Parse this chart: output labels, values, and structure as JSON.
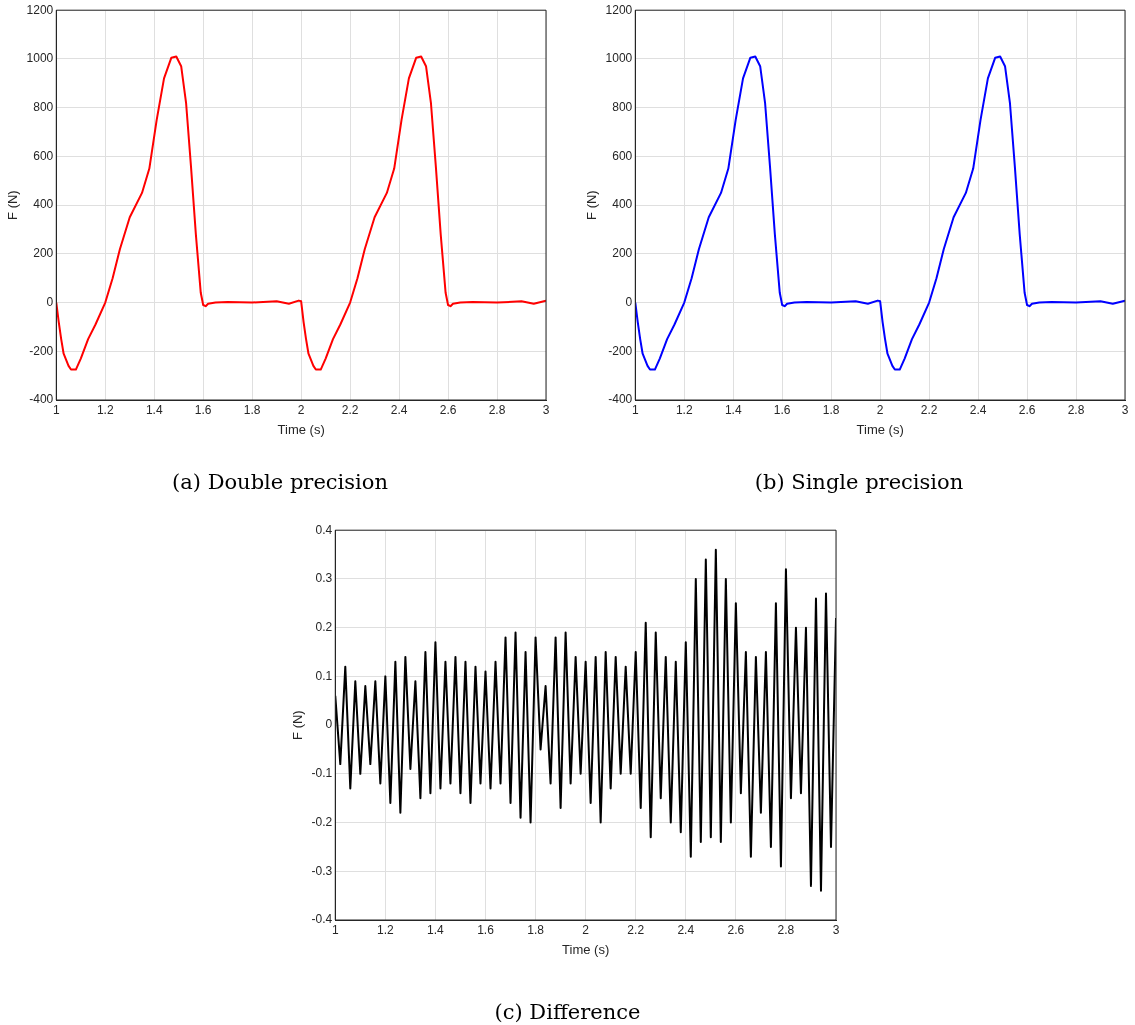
{
  "chart_data": [
    {
      "type": "line",
      "title": "(a) Double precision",
      "xlabel": "Time (s)",
      "ylabel": "F (N)",
      "xlim": [
        1,
        3
      ],
      "ylim": [
        -400,
        1200
      ],
      "xticks": [
        1,
        1.2,
        1.4,
        1.6,
        1.8,
        2,
        2.2,
        2.4,
        2.6,
        2.8,
        3
      ],
      "yticks": [
        -400,
        -200,
        0,
        200,
        400,
        600,
        800,
        1000,
        1200
      ],
      "grid": true,
      "legend": false,
      "marker": "none",
      "line_style": "solid",
      "x": [
        1,
        1.01,
        1.02,
        1.03,
        1.05,
        1.06,
        1.08,
        1.1,
        1.13,
        1.16,
        1.2,
        1.23,
        1.26,
        1.3,
        1.35,
        1.38,
        1.41,
        1.44,
        1.47,
        1.49,
        1.51,
        1.53,
        1.55,
        1.57,
        1.59,
        1.6,
        1.61,
        1.62,
        1.65,
        1.7,
        1.8,
        1.9,
        1.95,
        1.99,
        2,
        2.01,
        2.02,
        2.03,
        2.05,
        2.06,
        2.08,
        2.1,
        2.13,
        2.16,
        2.2,
        2.23,
        2.26,
        2.3,
        2.35,
        2.38,
        2.41,
        2.44,
        2.47,
        2.49,
        2.51,
        2.53,
        2.55,
        2.57,
        2.59,
        2.6,
        2.61,
        2.62,
        2.65,
        2.7,
        2.8,
        2.9,
        2.95,
        3
      ],
      "series": [
        {
          "color": "#ff0000",
          "values": [
            0,
            -80,
            -150,
            -210,
            -260,
            -275,
            -275,
            -230,
            -150,
            -90,
            0,
            100,
            220,
            350,
            450,
            550,
            750,
            920,
            1005,
            1010,
            970,
            820,
            560,
            280,
            40,
            -10,
            -15,
            -5,
            0,
            2,
            0,
            5,
            -5,
            8,
            5,
            -80,
            -150,
            -210,
            -260,
            -275,
            -275,
            -230,
            -150,
            -90,
            0,
            100,
            220,
            350,
            450,
            550,
            750,
            920,
            1005,
            1010,
            970,
            820,
            560,
            280,
            40,
            -10,
            -15,
            -5,
            0,
            2,
            0,
            5,
            -5,
            8
          ]
        }
      ]
    },
    {
      "type": "line",
      "title": "(b) Single precision",
      "xlabel": "Time (s)",
      "ylabel": "F (N)",
      "xlim": [
        1,
        3
      ],
      "ylim": [
        -400,
        1200
      ],
      "xticks": [
        1,
        1.2,
        1.4,
        1.6,
        1.8,
        2,
        2.2,
        2.4,
        2.6,
        2.8,
        3
      ],
      "yticks": [
        -400,
        -200,
        0,
        200,
        400,
        600,
        800,
        1000,
        1200
      ],
      "grid": true,
      "legend": false,
      "marker": "none",
      "line_style": "solid",
      "x": [
        1,
        1.01,
        1.02,
        1.03,
        1.05,
        1.06,
        1.08,
        1.1,
        1.13,
        1.16,
        1.2,
        1.23,
        1.26,
        1.3,
        1.35,
        1.38,
        1.41,
        1.44,
        1.47,
        1.49,
        1.51,
        1.53,
        1.55,
        1.57,
        1.59,
        1.6,
        1.61,
        1.62,
        1.65,
        1.7,
        1.8,
        1.9,
        1.95,
        1.99,
        2,
        2.01,
        2.02,
        2.03,
        2.05,
        2.06,
        2.08,
        2.1,
        2.13,
        2.16,
        2.2,
        2.23,
        2.26,
        2.3,
        2.35,
        2.38,
        2.41,
        2.44,
        2.47,
        2.49,
        2.51,
        2.53,
        2.55,
        2.57,
        2.59,
        2.6,
        2.61,
        2.62,
        2.65,
        2.7,
        2.8,
        2.9,
        2.95,
        3
      ],
      "series": [
        {
          "color": "#0000ff",
          "values": [
            0,
            -80,
            -150,
            -210,
            -260,
            -275,
            -275,
            -230,
            -150,
            -90,
            0,
            100,
            220,
            350,
            450,
            550,
            750,
            920,
            1005,
            1010,
            970,
            820,
            560,
            280,
            40,
            -10,
            -15,
            -5,
            0,
            2,
            0,
            5,
            -5,
            8,
            5,
            -80,
            -150,
            -210,
            -260,
            -275,
            -275,
            -230,
            -150,
            -90,
            0,
            100,
            220,
            350,
            450,
            550,
            750,
            920,
            1005,
            1010,
            970,
            820,
            560,
            280,
            40,
            -10,
            -15,
            -5,
            0,
            2,
            0,
            5,
            -5,
            8
          ]
        }
      ]
    },
    {
      "type": "line",
      "title": "(c) Difference",
      "xlabel": "Time (s)",
      "ylabel": "F (N)",
      "xlim": [
        1,
        3
      ],
      "ylim": [
        -0.4,
        0.4
      ],
      "xticks": [
        1,
        1.2,
        1.4,
        1.6,
        1.8,
        2,
        2.2,
        2.4,
        2.6,
        2.8,
        3
      ],
      "yticks": [
        -0.4,
        -0.3,
        -0.2,
        -0.1,
        0,
        0.1,
        0.2,
        0.3,
        0.4
      ],
      "grid": true,
      "legend": false,
      "marker": "none",
      "line_style": "solid",
      "x": [
        1,
        1.02,
        1.04,
        1.06,
        1.08,
        1.1,
        1.12,
        1.14,
        1.16,
        1.18,
        1.2,
        1.22,
        1.24,
        1.26,
        1.28,
        1.3,
        1.32,
        1.34,
        1.36,
        1.38,
        1.4,
        1.42,
        1.44,
        1.46,
        1.48,
        1.5,
        1.52,
        1.54,
        1.56,
        1.58,
        1.6,
        1.62,
        1.64,
        1.66,
        1.68,
        1.7,
        1.72,
        1.74,
        1.76,
        1.78,
        1.8,
        1.82,
        1.84,
        1.86,
        1.88,
        1.9,
        1.92,
        1.94,
        1.96,
        1.98,
        2,
        2.02,
        2.04,
        2.06,
        2.08,
        2.1,
        2.12,
        2.14,
        2.16,
        2.18,
        2.2,
        2.22,
        2.24,
        2.26,
        2.28,
        2.3,
        2.32,
        2.34,
        2.36,
        2.38,
        2.4,
        2.42,
        2.44,
        2.46,
        2.48,
        2.5,
        2.52,
        2.54,
        2.56,
        2.58,
        2.6,
        2.62,
        2.64,
        2.66,
        2.68,
        2.7,
        2.72,
        2.74,
        2.76,
        2.78,
        2.8,
        2.82,
        2.84,
        2.86,
        2.88,
        2.9,
        2.92,
        2.94,
        2.96,
        2.98,
        3
      ],
      "series": [
        {
          "color": "#000000",
          "values": [
            0.06,
            -0.08,
            0.12,
            -0.13,
            0.09,
            -0.1,
            0.08,
            -0.08,
            0.09,
            -0.12,
            0.1,
            -0.16,
            0.13,
            -0.18,
            0.14,
            -0.09,
            0.09,
            -0.15,
            0.15,
            -0.14,
            0.17,
            -0.13,
            0.13,
            -0.12,
            0.14,
            -0.14,
            0.13,
            -0.16,
            0.12,
            -0.12,
            0.11,
            -0.13,
            0.13,
            -0.12,
            0.18,
            -0.16,
            0.19,
            -0.19,
            0.15,
            -0.2,
            0.18,
            -0.05,
            0.08,
            -0.12,
            0.18,
            -0.17,
            0.19,
            -0.12,
            0.14,
            -0.1,
            0.13,
            -0.16,
            0.14,
            -0.2,
            0.15,
            -0.13,
            0.14,
            -0.1,
            0.12,
            -0.1,
            0.15,
            -0.17,
            0.21,
            -0.23,
            0.19,
            -0.15,
            0.14,
            -0.2,
            0.13,
            -0.22,
            0.17,
            -0.27,
            0.3,
            -0.24,
            0.34,
            -0.23,
            0.36,
            -0.24,
            0.3,
            -0.2,
            0.25,
            -0.14,
            0.15,
            -0.27,
            0.14,
            -0.18,
            0.15,
            -0.25,
            0.25,
            -0.29,
            0.32,
            -0.15,
            0.2,
            -0.14,
            0.2,
            -0.33,
            0.26,
            -0.34,
            0.27,
            -0.25,
            0.22
          ]
        }
      ]
    }
  ]
}
